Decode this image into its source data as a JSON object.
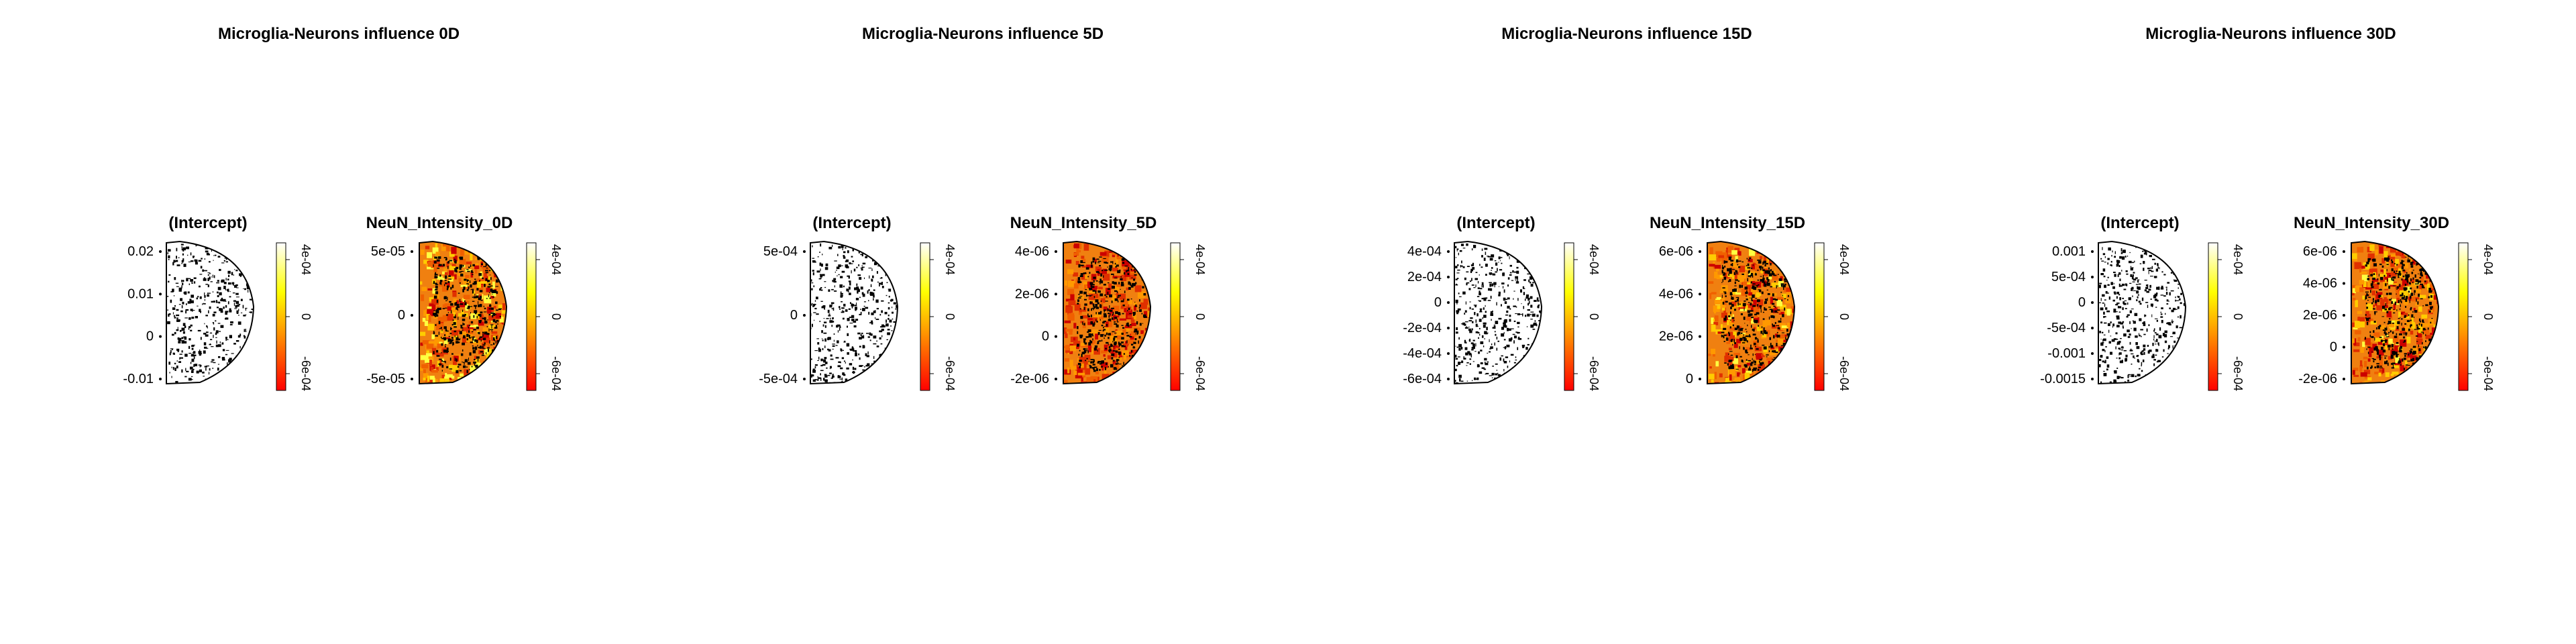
{
  "colors": {
    "background": "#ffffff",
    "shape_fill": "#ffffff",
    "outline": "#000000",
    "colorbar_gradient": [
      "#ff0000",
      "#ff8000",
      "#ffff00",
      "#ffffff"
    ]
  },
  "chart_data": [
    {
      "type": "heatmap",
      "title": "Microglia-Neurons influence 0D",
      "intercept_panel": {
        "title": "(Intercept)",
        "y_ticks": [
          "0.02",
          "0.01",
          "0",
          "-0.01"
        ],
        "colorbar_ticks": [
          "4e-04",
          "0",
          "-6e-04"
        ]
      },
      "neun_panel": {
        "title": "NeuN_Intensity_0D",
        "y_ticks": [
          "5e-05",
          "0",
          "-5e-05"
        ],
        "colorbar_ticks": [
          "4e-04",
          "0",
          "-6e-04"
        ],
        "fill_level": 0.55
      }
    },
    {
      "type": "heatmap",
      "title": "Microglia-Neurons influence 5D",
      "intercept_panel": {
        "title": "(Intercept)",
        "y_ticks": [
          "5e-04",
          "0",
          "-5e-04"
        ],
        "colorbar_ticks": [
          "4e-04",
          "0",
          "-6e-04"
        ]
      },
      "neun_panel": {
        "title": "NeuN_Intensity_5D",
        "y_ticks": [
          "4e-06",
          "2e-06",
          "0",
          "-2e-06"
        ],
        "colorbar_ticks": [
          "4e-04",
          "0",
          "-6e-04"
        ],
        "fill_level": 0.2
      }
    },
    {
      "type": "heatmap",
      "title": "Microglia-Neurons influence 15D",
      "intercept_panel": {
        "title": "(Intercept)",
        "y_ticks": [
          "4e-04",
          "2e-04",
          "0",
          "-2e-04",
          "-4e-04",
          "-6e-04"
        ],
        "colorbar_ticks": [
          "4e-04",
          "0",
          "-6e-04"
        ]
      },
      "neun_panel": {
        "title": "NeuN_Intensity_15D",
        "y_ticks": [
          "6e-06",
          "4e-06",
          "2e-06",
          "0"
        ],
        "colorbar_ticks": [
          "4e-04",
          "0",
          "-6e-04"
        ],
        "fill_level": 0.5
      }
    },
    {
      "type": "heatmap",
      "title": "Microglia-Neurons influence 30D",
      "intercept_panel": {
        "title": "(Intercept)",
        "y_ticks": [
          "0.001",
          "5e-04",
          "0",
          "-5e-04",
          "-0.001",
          "-0.0015"
        ],
        "colorbar_ticks": [
          "4e-04",
          "0",
          "-6e-04"
        ]
      },
      "neun_panel": {
        "title": "NeuN_Intensity_30D",
        "y_ticks": [
          "6e-06",
          "4e-06",
          "2e-06",
          "0",
          "-2e-06"
        ],
        "colorbar_ticks": [
          "4e-04",
          "0",
          "-6e-04"
        ],
        "fill_level": 0.5
      }
    }
  ]
}
